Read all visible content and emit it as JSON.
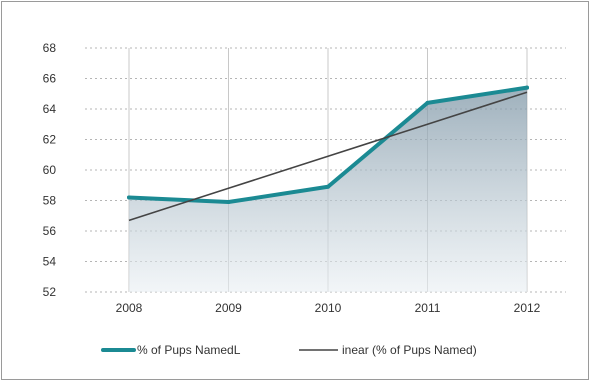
{
  "chart_data": {
    "type": "line",
    "categories": [
      "2008",
      "2009",
      "2010",
      "2011",
      "2012"
    ],
    "series": [
      {
        "name": "% of Pups NamedL",
        "values": [
          58.2,
          57.9,
          58.9,
          64.4,
          65.4
        ],
        "color": "#1b8a93",
        "style": "thick line with gradient area fill"
      },
      {
        "name": "inear (% of Pups Named)",
        "values": [
          56.7,
          58.8,
          60.9,
          63.0,
          65.1
        ],
        "color": "#444444",
        "style": "thin trend line"
      }
    ],
    "ylim": [
      52,
      68
    ],
    "yticks": [
      52,
      54,
      56,
      58,
      60,
      62,
      64,
      66,
      68
    ],
    "grid": "horizontal dotted, vertical solid",
    "legend_position": "bottom"
  }
}
